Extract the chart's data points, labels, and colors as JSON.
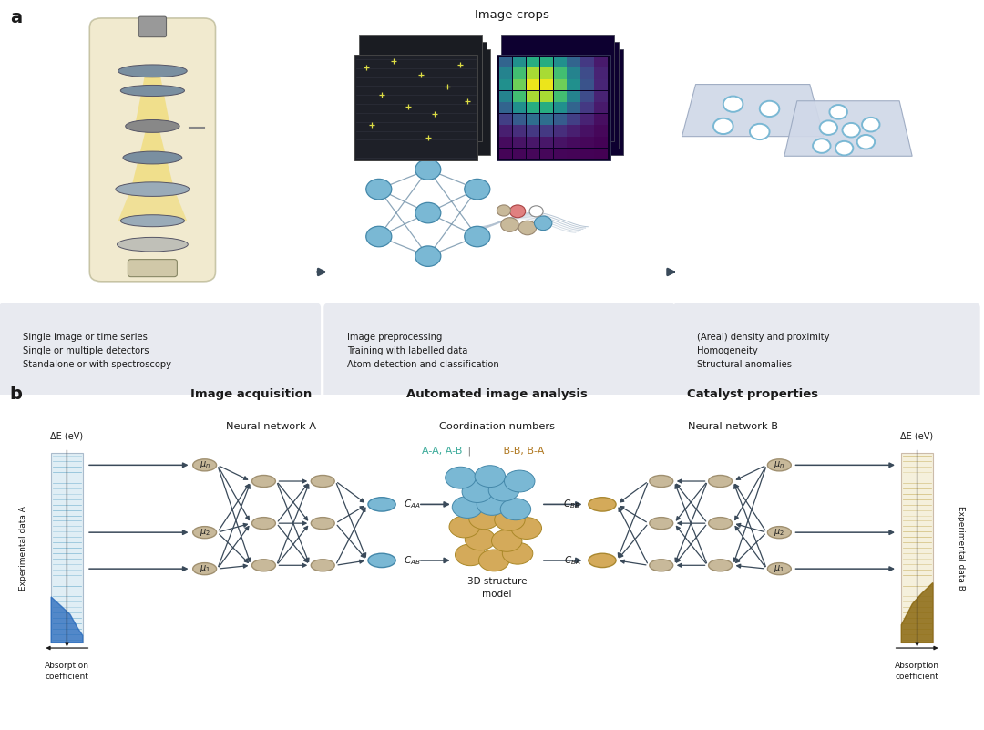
{
  "bg_color": "#ffffff",
  "panel_a_bg": "#e8eaf0",
  "arrow_color": "#3a4a5a",
  "node_color_tan": "#c8b99a",
  "node_color_blue": "#7ab8d4",
  "node_color_gold": "#d4aa5a",
  "text_color_dark": "#1a1a1a",
  "text_color_blue": "#3aaa99",
  "text_color_gold": "#b07820",
  "label_a": "a",
  "label_b": "b",
  "title_img_acquisition": "Image acquisition",
  "title_auto_analysis": "Automated image analysis",
  "title_catalyst": "Catalyst properties",
  "nn_a_title": "Neural network A",
  "nn_b_title": "Neural network B",
  "coord_title": "Coordination numbers",
  "box1_lines": [
    "Single image or time series",
    "Single or multiple detectors",
    "Standalone or with spectroscopy"
  ],
  "box2_lines": [
    "Image preprocessing",
    "Training with labelled data",
    "Atom detection and classification"
  ],
  "box3_lines": [
    "(Areal) density and proximity",
    "Homogeneity",
    "Structural anomalies"
  ],
  "img_crops_label": "Image crops",
  "exp_data_a": "Experimental data A",
  "exp_data_b": "Experimental data B",
  "abs_coeff": "Absorption\ncoefficient",
  "delta_e": "ΔE (eV)",
  "model_label": "3D structure\nmodel"
}
